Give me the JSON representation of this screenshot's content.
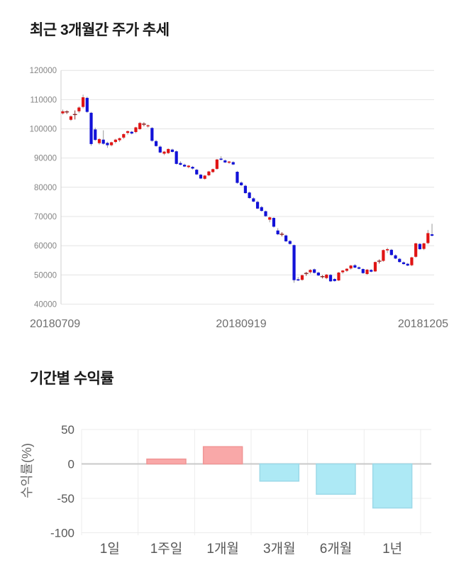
{
  "price_section": {
    "title": "최근 3개월간 주가 추세"
  },
  "returns_section": {
    "title": "기간별 수익률"
  },
  "chart_data": [
    {
      "type": "candlestick",
      "title": "최근 3개월간 주가 추세",
      "ylim": [
        40000,
        120000
      ],
      "y_ticks": [
        120000,
        110000,
        100000,
        90000,
        80000,
        70000,
        60000,
        50000,
        40000
      ],
      "x_tick_labels": [
        "20180709",
        "20180919",
        "20181205"
      ],
      "grid": "horizontal",
      "legend": "none",
      "colors": {
        "up": "#e01414",
        "down": "#1212d8",
        "doji": "#8b2424",
        "wick": "#9a9a9a",
        "grid": "#e4e4e4",
        "axis": "#cfcfcf"
      },
      "candles": [
        [
          105300,
          106600,
          104900,
          106000
        ],
        [
          105800,
          106300,
          105100,
          105800
        ],
        [
          103100,
          104600,
          102700,
          104300
        ],
        [
          104800,
          106300,
          103200,
          104900
        ],
        [
          106000,
          107700,
          105400,
          107300
        ],
        [
          107500,
          111700,
          107000,
          110800
        ],
        [
          110600,
          111000,
          105500,
          105800
        ],
        [
          105500,
          105800,
          94200,
          94800
        ],
        [
          99800,
          100400,
          95900,
          96200
        ],
        [
          95100,
          96800,
          94600,
          96500
        ],
        [
          96300,
          99500,
          94600,
          94900
        ],
        [
          95200,
          95600,
          93500,
          94400
        ],
        [
          94400,
          95600,
          94000,
          95400
        ],
        [
          95500,
          96600,
          95000,
          96300
        ],
        [
          96100,
          97000,
          95500,
          96800
        ],
        [
          97000,
          98400,
          96500,
          98200
        ],
        [
          98600,
          99400,
          98000,
          99200
        ],
        [
          99000,
          99300,
          98100,
          98400
        ],
        [
          98900,
          100700,
          98500,
          100500
        ],
        [
          99900,
          102400,
          99700,
          102000
        ],
        [
          101800,
          102200,
          100900,
          101600
        ],
        [
          100900,
          101500,
          100400,
          101200
        ],
        [
          100300,
          100600,
          95600,
          95900
        ],
        [
          95800,
          96200,
          93900,
          94100
        ],
        [
          93900,
          94300,
          91700,
          91900
        ],
        [
          91500,
          92400,
          91000,
          92200
        ],
        [
          91700,
          93300,
          91400,
          93100
        ],
        [
          92900,
          93200,
          91900,
          92100
        ],
        [
          92300,
          92600,
          87800,
          88000
        ],
        [
          88300,
          88900,
          87500,
          87700
        ],
        [
          87700,
          88100,
          86900,
          87100
        ],
        [
          86900,
          87600,
          86500,
          87400
        ],
        [
          87000,
          87300,
          86100,
          86400
        ],
        [
          86000,
          86300,
          84200,
          84400
        ],
        [
          84300,
          84600,
          82800,
          83000
        ],
        [
          82900,
          84200,
          82600,
          84000
        ],
        [
          84100,
          85600,
          83800,
          85400
        ],
        [
          85200,
          86400,
          84900,
          86200
        ],
        [
          86300,
          89700,
          86000,
          89500
        ],
        [
          89800,
          90600,
          89200,
          89400
        ],
        [
          89200,
          89500,
          88300,
          88500
        ],
        [
          88400,
          89000,
          88000,
          88800
        ],
        [
          88600,
          88900,
          87600,
          87800
        ],
        [
          85300,
          85600,
          81200,
          81500
        ],
        [
          81600,
          82000,
          80400,
          80700
        ],
        [
          80500,
          80900,
          77800,
          78000
        ],
        [
          78200,
          78500,
          76100,
          76300
        ],
        [
          76200,
          76600,
          74900,
          75100
        ],
        [
          75000,
          75400,
          72500,
          72700
        ],
        [
          73200,
          73600,
          71700,
          71900
        ],
        [
          71800,
          72000,
          69900,
          70100
        ],
        [
          68900,
          70000,
          68000,
          69700
        ],
        [
          69500,
          69800,
          66200,
          66500
        ],
        [
          65200,
          66000,
          63600,
          63900
        ],
        [
          63800,
          64600,
          63200,
          63900
        ],
        [
          63500,
          63800,
          61300,
          61500
        ],
        [
          61600,
          61900,
          60400,
          60600
        ],
        [
          60200,
          60400,
          47300,
          48200
        ],
        [
          48500,
          49300,
          47900,
          48100
        ],
        [
          48300,
          50100,
          48000,
          49900
        ],
        [
          50300,
          51000,
          49700,
          50500
        ],
        [
          50900,
          52000,
          50400,
          51700
        ],
        [
          51900,
          52200,
          50500,
          50700
        ],
        [
          50800,
          51100,
          49600,
          49800
        ],
        [
          49300,
          49900,
          48800,
          49400
        ],
        [
          48900,
          50300,
          48500,
          50100
        ],
        [
          50000,
          50300,
          47600,
          47800
        ],
        [
          48600,
          48900,
          47700,
          47900
        ],
        [
          48100,
          51000,
          47900,
          50800
        ],
        [
          50900,
          51700,
          50400,
          51500
        ],
        [
          51400,
          52300,
          51000,
          52100
        ],
        [
          52200,
          53400,
          51800,
          53200
        ],
        [
          53300,
          53700,
          52300,
          52500
        ],
        [
          52600,
          52900,
          51900,
          52100
        ],
        [
          52000,
          52300,
          50400,
          50600
        ],
        [
          50300,
          52000,
          50000,
          51800
        ],
        [
          51700,
          52000,
          50900,
          51100
        ],
        [
          51200,
          54600,
          51000,
          54400
        ],
        [
          54500,
          55300,
          53900,
          54700
        ],
        [
          54800,
          58700,
          54500,
          58500
        ],
        [
          58400,
          59300,
          57500,
          58800
        ],
        [
          58600,
          58900,
          56600,
          56800
        ],
        [
          56700,
          57000,
          55400,
          55600
        ],
        [
          55500,
          55800,
          54200,
          54400
        ],
        [
          54300,
          54600,
          53500,
          53700
        ],
        [
          53800,
          54100,
          53000,
          53200
        ],
        [
          53300,
          56200,
          53000,
          56000
        ],
        [
          56200,
          61000,
          55900,
          60800
        ],
        [
          60600,
          60900,
          58600,
          58800
        ],
        [
          58900,
          61000,
          58500,
          60800
        ],
        [
          60900,
          65400,
          60500,
          64300
        ],
        [
          63900,
          67500,
          63200,
          63400
        ]
      ]
    },
    {
      "type": "bar",
      "title": "기간별 수익률",
      "ylabel": "수익률(%)",
      "categories": [
        "1일",
        "1주일",
        "1개월",
        "3개월",
        "6개월",
        "1년"
      ],
      "values": [
        0,
        7,
        25,
        -25,
        -44,
        -64
      ],
      "y_ticks": [
        50,
        0,
        -50,
        -100
      ],
      "ylim": [
        -100,
        50
      ],
      "grid": "both",
      "legend": "none",
      "colors": {
        "positive": "#f9a8a8",
        "positive_border": "#f09595",
        "negative": "#ade9f5",
        "negative_border": "#9cd9e8",
        "zero_line": "#c9c9c9",
        "grid": "#ececec"
      }
    }
  ]
}
